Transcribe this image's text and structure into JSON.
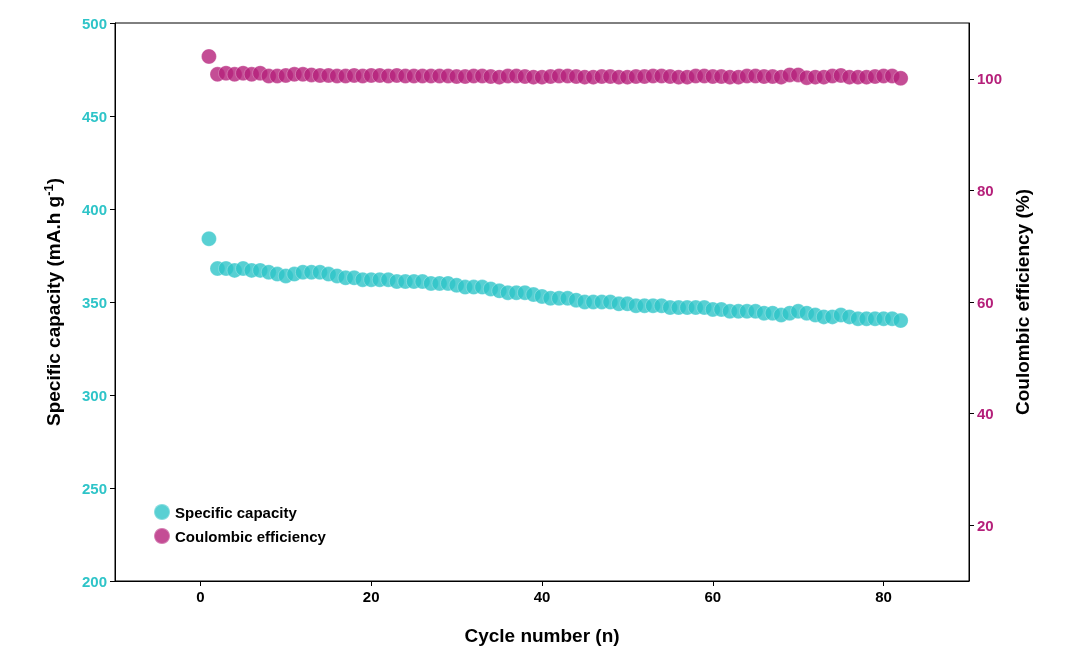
{
  "chart_data": {
    "type": "scatter",
    "xlabel": "Cycle number (n)",
    "ylabel": "Specific capacity (mA.h g$^{-1}$)",
    "y2label": "Coulombic efficiency (%)",
    "x": [
      1,
      2,
      3,
      4,
      5,
      6,
      7,
      8,
      9,
      10,
      11,
      12,
      13,
      14,
      15,
      16,
      17,
      18,
      19,
      20,
      21,
      22,
      23,
      24,
      25,
      26,
      27,
      28,
      29,
      30,
      31,
      32,
      33,
      34,
      35,
      36,
      37,
      38,
      39,
      40,
      41,
      42,
      43,
      44,
      45,
      46,
      47,
      48,
      49,
      50,
      51,
      52,
      53,
      54,
      55,
      56,
      57,
      58,
      59,
      60,
      61,
      62,
      63,
      64,
      65,
      66,
      67,
      68,
      69,
      70,
      71,
      72,
      73,
      74,
      75,
      76,
      77,
      78,
      79,
      80,
      81,
      82
    ],
    "series": [
      {
        "name": "Specific capacity",
        "color": "#2ec4c8",
        "values": [
          384,
          368,
          368,
          367,
          368,
          367,
          367,
          366,
          365,
          364,
          365,
          366,
          366,
          366,
          365,
          364,
          363,
          363,
          362,
          362,
          362,
          362,
          361,
          361,
          361,
          361,
          360,
          360,
          360,
          359,
          358,
          358,
          358,
          357,
          356,
          355,
          355,
          355,
          354,
          353,
          352,
          352,
          352,
          351,
          350,
          350,
          350,
          350,
          349,
          349,
          348,
          348,
          348,
          348,
          347,
          347,
          347,
          347,
          347,
          346,
          346,
          345,
          345,
          345,
          345,
          344,
          344,
          343,
          344,
          345,
          344,
          343,
          342,
          342,
          343,
          342,
          341,
          341,
          341,
          341,
          341,
          340
        ]
      },
      {
        "name": "Coulombic efficiency",
        "color": "#b5207a",
        "axis": "y2",
        "values": [
          104,
          100.8,
          101,
          100.8,
          101,
          100.8,
          101,
          100.5,
          100.5,
          100.6,
          100.8,
          100.8,
          100.7,
          100.6,
          100.6,
          100.5,
          100.5,
          100.6,
          100.5,
          100.6,
          100.6,
          100.5,
          100.6,
          100.5,
          100.5,
          100.5,
          100.5,
          100.5,
          100.5,
          100.4,
          100.4,
          100.5,
          100.5,
          100.4,
          100.3,
          100.5,
          100.5,
          100.4,
          100.3,
          100.3,
          100.4,
          100.5,
          100.5,
          100.4,
          100.3,
          100.3,
          100.4,
          100.4,
          100.3,
          100.3,
          100.4,
          100.4,
          100.5,
          100.5,
          100.4,
          100.3,
          100.3,
          100.5,
          100.5,
          100.4,
          100.4,
          100.3,
          100.3,
          100.5,
          100.5,
          100.4,
          100.4,
          100.3,
          100.7,
          100.7,
          100.2,
          100.3,
          100.3,
          100.5,
          100.6,
          100.3,
          100.3,
          100.3,
          100.4,
          100.5,
          100.5,
          100.1
        ]
      }
    ],
    "xlim": [
      -10,
      90
    ],
    "xticks": [
      0,
      20,
      40,
      60,
      80
    ],
    "ylim": [
      200,
      500
    ],
    "yticks": [
      200,
      250,
      300,
      350,
      400,
      450,
      500
    ],
    "y2lim": [
      10,
      110
    ],
    "y2ticks": [
      20,
      40,
      60,
      80,
      100
    ],
    "marker": "circle",
    "grid": false,
    "legend": "bottom left"
  }
}
